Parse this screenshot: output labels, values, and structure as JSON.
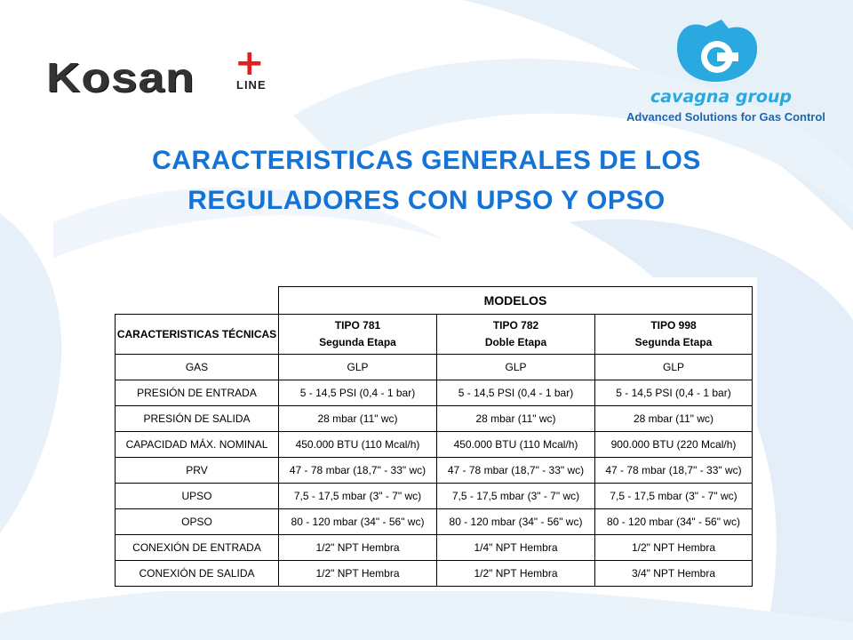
{
  "logos": {
    "kosan_text": "Kosan",
    "kosan_sub": "LINE",
    "cavagna_name": "cavagna group",
    "cavagna_tagline": "Advanced Solutions for Gas Control"
  },
  "title": {
    "line1": "CARACTERISTICAS GENERALES DE LOS",
    "line2": "REGULADORES CON UPSO Y OPSO"
  },
  "table": {
    "group_header": "MODELOS",
    "feature_header": "CARACTERISTICAS TÉCNICAS",
    "models": [
      {
        "type": "TIPO 781",
        "stage": "Segunda Etapa"
      },
      {
        "type": "TIPO 782",
        "stage": "Doble Etapa"
      },
      {
        "type": "TIPO 998",
        "stage": "Segunda Etapa"
      }
    ],
    "rows": [
      {
        "feature": "GAS",
        "values": [
          "GLP",
          "GLP",
          "GLP"
        ]
      },
      {
        "feature": "PRESIÓN DE ENTRADA",
        "values": [
          "5 - 14,5 PSI (0,4 - 1 bar)",
          "5 - 14,5 PSI (0,4 - 1 bar)",
          "5 - 14,5 PSI (0,4 - 1 bar)"
        ]
      },
      {
        "feature": "PRESIÓN DE SALIDA",
        "values": [
          "28 mbar (11\" wc)",
          "28 mbar (11\" wc)",
          "28 mbar (11\" wc)"
        ]
      },
      {
        "feature": "CAPACIDAD MÁX. NOMINAL",
        "values": [
          "450.000 BTU (110 Mcal/h)",
          "450.000 BTU (110 Mcal/h)",
          "900.000 BTU (220 Mcal/h)"
        ]
      },
      {
        "feature": "PRV",
        "values": [
          "47 - 78 mbar (18,7\" - 33\" wc)",
          "47 - 78 mbar (18,7\" - 33\" wc)",
          "47 - 78 mbar (18,7\" - 33\" wc)"
        ]
      },
      {
        "feature": "UPSO",
        "values": [
          "7,5 - 17,5 mbar (3\" - 7\" wc)",
          "7,5 - 17,5 mbar (3\" - 7\" wc)",
          "7,5 - 17,5 mbar (3\" - 7\" wc)"
        ]
      },
      {
        "feature": "OPSO",
        "values": [
          "80 - 120 mbar (34\" - 56\" wc)",
          "80 - 120 mbar (34\" - 56\" wc)",
          "80 - 120 mbar (34\" - 56\" wc)"
        ]
      },
      {
        "feature": "CONEXIÓN DE ENTRADA",
        "values": [
          "1/2\" NPT Hembra",
          "1/4\" NPT Hembra",
          "1/2\" NPT Hembra"
        ]
      },
      {
        "feature": "CONEXIÓN DE SALIDA",
        "values": [
          "1/2\" NPT Hembra",
          "1/2\" NPT Hembra",
          "3/4\" NPT Hembra"
        ]
      }
    ]
  },
  "colors": {
    "title": "#1473d6",
    "swoosh": "#e3eef8",
    "cavagna_blue": "#2aa8e0",
    "kosan_red": "#e02020"
  }
}
